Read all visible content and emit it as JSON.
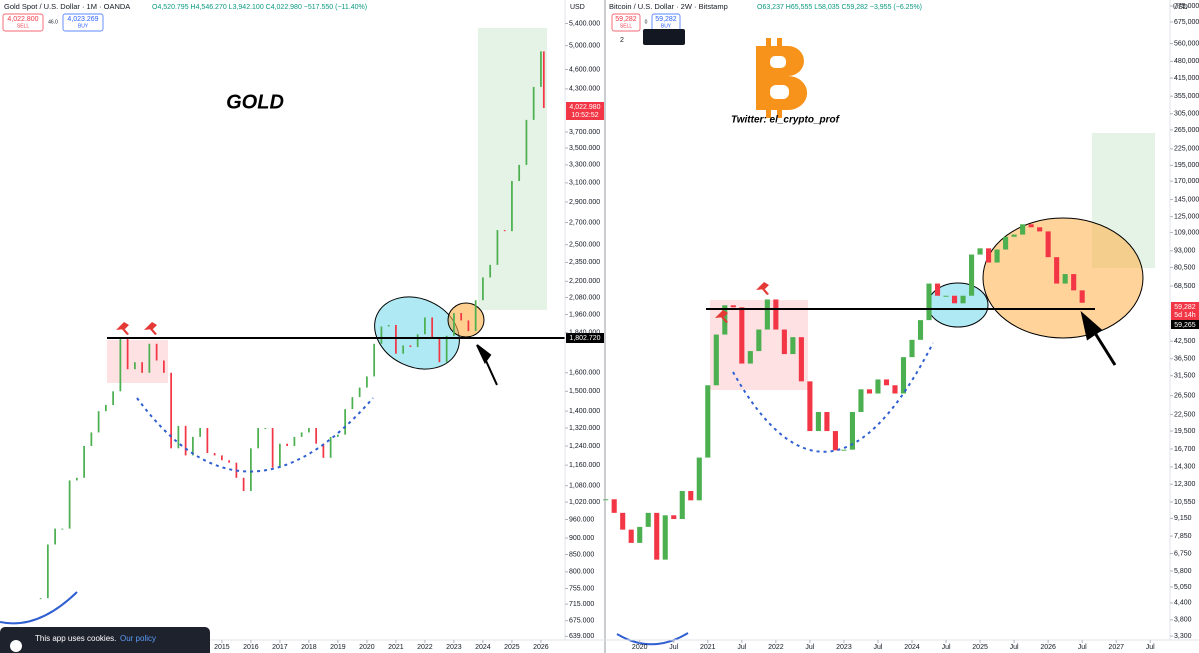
{
  "chart_data": [
    {
      "type": "candlestick",
      "title": "Gold Spot / U.S. Dollar · 1M · OANDA",
      "subtitle": "O4,520.795 H4,546.270 L3,942.100 C4,022.980 −517.550 (−11.40%)",
      "ylabel": "USD",
      "annotations": [
        "GOLD",
        "4,022.800",
        "SELL",
        "46.0",
        "4,023.269",
        "BUY",
        "4,022.980",
        "10:52:52",
        "1,802.720"
      ],
      "log_scale": true,
      "up_color": "#4caf50",
      "down_color": "#f23645",
      "xlim": [
        2007.35,
        2026.83
      ],
      "ylim": [
        631,
        5860
      ],
      "xticks": [
        2015,
        2016,
        2017,
        2018,
        2019,
        2020,
        2021,
        2022,
        2023,
        2024,
        2025,
        2026
      ],
      "yticks": [
        {
          "value": 5400,
          "label": "5,400.000"
        },
        {
          "value": 5000,
          "label": "5,000.000"
        },
        {
          "value": 4600,
          "label": "4,600.000"
        },
        {
          "value": 4300,
          "label": "4,300.000"
        },
        {
          "value": 3700,
          "label": "3,700.000"
        },
        {
          "value": 3500,
          "label": "3,500.000"
        },
        {
          "value": 3300,
          "label": "3,300.000"
        },
        {
          "value": 3100,
          "label": "3,100.000"
        },
        {
          "value": 2900,
          "label": "2,900.000"
        },
        {
          "value": 2700,
          "label": "2,700.000"
        },
        {
          "value": 2500,
          "label": "2,500.000"
        },
        {
          "value": 2350,
          "label": "2,350.000"
        },
        {
          "value": 2200,
          "label": "2,200.000"
        },
        {
          "value": 2080,
          "label": "2,080.000"
        },
        {
          "value": 1960,
          "label": "1,960.000"
        },
        {
          "value": 1840,
          "label": "1,840.000"
        },
        {
          "value": 1600,
          "label": "1,600.000"
        },
        {
          "value": 1500,
          "label": "1,500.000"
        },
        {
          "value": 1400,
          "label": "1,400.000"
        },
        {
          "value": 1320,
          "label": "1,320.000"
        },
        {
          "value": 1240,
          "label": "1,240.000"
        },
        {
          "value": 1160,
          "label": "1,160.000"
        },
        {
          "value": 1080,
          "label": "1,080.000"
        },
        {
          "value": 1020,
          "label": "1,020.000"
        },
        {
          "value": 960,
          "label": "960.000"
        },
        {
          "value": 900,
          "label": "900.000"
        },
        {
          "value": 850,
          "label": "850.000"
        },
        {
          "value": 800,
          "label": "800.000"
        },
        {
          "value": 755,
          "label": "755.000"
        },
        {
          "value": 715,
          "label": "715.000"
        },
        {
          "value": 675,
          "label": "675.000"
        },
        {
          "value": 639,
          "label": "639.000"
        }
      ],
      "x": [
        2008.75,
        2009.0,
        2009.25,
        2009.5,
        2009.75,
        2010.0,
        2010.25,
        2010.5,
        2010.75,
        2011.0,
        2011.25,
        2011.5,
        2011.75,
        2012.0,
        2012.25,
        2012.5,
        2012.75,
        2013.0,
        2013.25,
        2013.5,
        2013.75,
        2014.0,
        2014.25,
        2014.5,
        2014.75,
        2015.0,
        2015.25,
        2015.5,
        2015.75,
        2016.0,
        2016.25,
        2016.5,
        2016.75,
        2017.0,
        2017.25,
        2017.5,
        2017.75,
        2018.0,
        2018.25,
        2018.5,
        2018.75,
        2019.0,
        2019.25,
        2019.5,
        2019.75,
        2020.0,
        2020.25,
        2020.5,
        2020.75,
        2021.0,
        2021.25,
        2021.5,
        2021.75,
        2022.0,
        2022.25,
        2022.5,
        2022.75,
        2023.0,
        2023.25,
        2023.5,
        2023.75,
        2024.0,
        2024.25,
        2024.5,
        2024.75,
        2025.0,
        2025.25,
        2025.5,
        2025.75,
        2026.0,
        2026.1
      ],
      "values": [
        730,
        880,
        930,
        930,
        1100,
        1110,
        1240,
        1300,
        1400,
        1430,
        1500,
        1800,
        1620,
        1660,
        1600,
        1770,
        1670,
        1600,
        1230,
        1330,
        1200,
        1280,
        1320,
        1210,
        1200,
        1180,
        1170,
        1110,
        1060,
        1230,
        1320,
        1320,
        1150,
        1250,
        1240,
        1280,
        1300,
        1320,
        1250,
        1190,
        1280,
        1290,
        1410,
        1470,
        1520,
        1580,
        1770,
        1880,
        1890,
        1710,
        1760,
        1750,
        1830,
        1940,
        1810,
        1660,
        1820,
        1970,
        1920,
        1850,
        2060,
        2230,
        2330,
        2630,
        2620,
        3120,
        3300,
        3860,
        4330,
        4900,
        4022.98
      ]
    },
    {
      "type": "candlestick",
      "title": "Bitcoin / U.S. Dollar · 2W · Bitstamp",
      "subtitle": "O63,237 H65,555 L58,035 C59,282 −3,955 (−6.25%)",
      "ylabel": "USD",
      "annotations": [
        "Twitter: el_crypto_prof",
        "59,282",
        "SELL",
        "0",
        "59,282",
        "BUY",
        "59,282",
        "5d 14h",
        "59,265",
        "2"
      ],
      "log_scale": true,
      "up_color": "#4caf50",
      "down_color": "#f23645",
      "xlim": [
        2019.49,
        2027.79
      ],
      "ylim": [
        3190,
        817000
      ],
      "xticks": [
        {
          "value": 2020,
          "label": "2020"
        },
        {
          "value": 2020.5,
          "label": "Jul"
        },
        {
          "value": 2021,
          "label": "2021"
        },
        {
          "value": 2021.5,
          "label": "Jul"
        },
        {
          "value": 2022,
          "label": "2022"
        },
        {
          "value": 2022.5,
          "label": "Jul"
        },
        {
          "value": 2023,
          "label": "2023"
        },
        {
          "value": 2023.5,
          "label": "Jul"
        },
        {
          "value": 2024,
          "label": "2024"
        },
        {
          "value": 2024.5,
          "label": "Jul"
        },
        {
          "value": 2025,
          "label": "2025"
        },
        {
          "value": 2025.5,
          "label": "Jul"
        },
        {
          "value": 2026,
          "label": "2026"
        },
        {
          "value": 2026.5,
          "label": "Jul"
        },
        {
          "value": 2027,
          "label": "2027"
        },
        {
          "value": 2027.5,
          "label": "Jul"
        }
      ],
      "yticks": [
        {
          "value": 775000,
          "label": "775,000"
        },
        {
          "value": 675000,
          "label": "675,000"
        },
        {
          "value": 560000,
          "label": "560,000"
        },
        {
          "value": 480000,
          "label": "480,000"
        },
        {
          "value": 415000,
          "label": "415,000"
        },
        {
          "value": 355000,
          "label": "355,000"
        },
        {
          "value": 305000,
          "label": "305,000"
        },
        {
          "value": 265000,
          "label": "265,000"
        },
        {
          "value": 225000,
          "label": "225,000"
        },
        {
          "value": 195000,
          "label": "195,000"
        },
        {
          "value": 170000,
          "label": "170,000"
        },
        {
          "value": 145000,
          "label": "145,000"
        },
        {
          "value": 125000,
          "label": "125,000"
        },
        {
          "value": 109000,
          "label": "109,000"
        },
        {
          "value": 93000,
          "label": "93,000"
        },
        {
          "value": 80500,
          "label": "80,500"
        },
        {
          "value": 68500,
          "label": "68,500"
        },
        {
          "value": 42500,
          "label": "42,500"
        },
        {
          "value": 36500,
          "label": "36,500"
        },
        {
          "value": 31500,
          "label": "31,500"
        },
        {
          "value": 26500,
          "label": "26,500"
        },
        {
          "value": 22500,
          "label": "22,500"
        },
        {
          "value": 19500,
          "label": "19,500"
        },
        {
          "value": 16700,
          "label": "16,700"
        },
        {
          "value": 14300,
          "label": "14,300"
        },
        {
          "value": 12300,
          "label": "12,300"
        },
        {
          "value": 10550,
          "label": "10,550"
        },
        {
          "value": 9150,
          "label": "9,150"
        },
        {
          "value": 7850,
          "label": "7,850"
        },
        {
          "value": 6750,
          "label": "6,750"
        },
        {
          "value": 5800,
          "label": "5,800"
        },
        {
          "value": 5050,
          "label": "5,050"
        },
        {
          "value": 4400,
          "label": "4,400"
        },
        {
          "value": 3800,
          "label": "3,800"
        },
        {
          "value": 3300,
          "label": "3,300"
        }
      ],
      "x": [
        2019.5,
        2019.625,
        2019.75,
        2019.875,
        2020.0,
        2020.125,
        2020.25,
        2020.375,
        2020.5,
        2020.625,
        2020.75,
        2020.875,
        2021.0,
        2021.125,
        2021.25,
        2021.375,
        2021.5,
        2021.625,
        2021.75,
        2021.875,
        2022.0,
        2022.125,
        2022.25,
        2022.375,
        2022.5,
        2022.625,
        2022.75,
        2022.875,
        2023.0,
        2023.125,
        2023.25,
        2023.375,
        2023.5,
        2023.625,
        2023.75,
        2023.875,
        2024.0,
        2024.125,
        2024.25,
        2024.375,
        2024.5,
        2024.625,
        2024.75,
        2024.875,
        2025.0,
        2025.125,
        2025.25,
        2025.375,
        2025.5,
        2025.625,
        2025.75,
        2025.875,
        2026.0,
        2026.125,
        2026.25,
        2026.375,
        2026.5
      ],
      "values": [
        10800,
        9600,
        8300,
        7400,
        8500,
        9600,
        6400,
        9400,
        9100,
        11600,
        10700,
        15500,
        29000,
        45000,
        58000,
        57000,
        35000,
        39000,
        47000,
        61000,
        47000,
        38000,
        44000,
        30000,
        19500,
        23000,
        19500,
        16500,
        16600,
        23000,
        28000,
        27000,
        30500,
        29000,
        27000,
        37000,
        43000,
        51000,
        70000,
        63000,
        63000,
        59000,
        63000,
        90000,
        95000,
        84000,
        94000,
        105000,
        107000,
        117000,
        114000,
        110000,
        88000,
        70000,
        76000,
        66000,
        59282
      ]
    }
  ],
  "cookie": {
    "text": "This app uses cookies.",
    "link": "Our policy"
  }
}
